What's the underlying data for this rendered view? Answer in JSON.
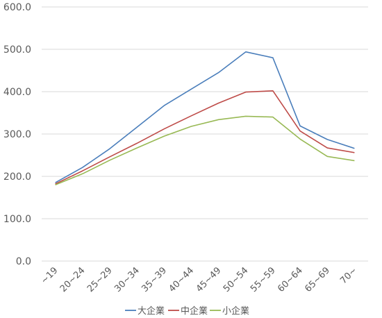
{
  "chart_data": {
    "type": "line",
    "categories": [
      "~19",
      "20~24",
      "25~29",
      "30~34",
      "35~39",
      "40~44",
      "45~49",
      "50~54",
      "55~59",
      "60~64",
      "65~69",
      "70~"
    ],
    "series": [
      {
        "name": "大企業",
        "color": "#4a7ebb",
        "values": [
          185,
          221,
          265,
          316,
          367,
          406,
          445,
          494,
          480,
          319,
          287,
          266
        ]
      },
      {
        "name": "中企業",
        "color": "#be4b48",
        "values": [
          182,
          213,
          246,
          278,
          312,
          343,
          373,
          399,
          402,
          307,
          267,
          256
        ]
      },
      {
        "name": "小企業",
        "color": "#98b954",
        "values": [
          180,
          206,
          238,
          267,
          295,
          318,
          334,
          342,
          340,
          288,
          247,
          237
        ]
      }
    ],
    "yticks": [
      "0.0",
      "100.0",
      "200.0",
      "300.0",
      "400.0",
      "500.0",
      "600.0"
    ],
    "ylim": [
      0,
      600
    ],
    "grid": true,
    "legend": "bottom"
  }
}
